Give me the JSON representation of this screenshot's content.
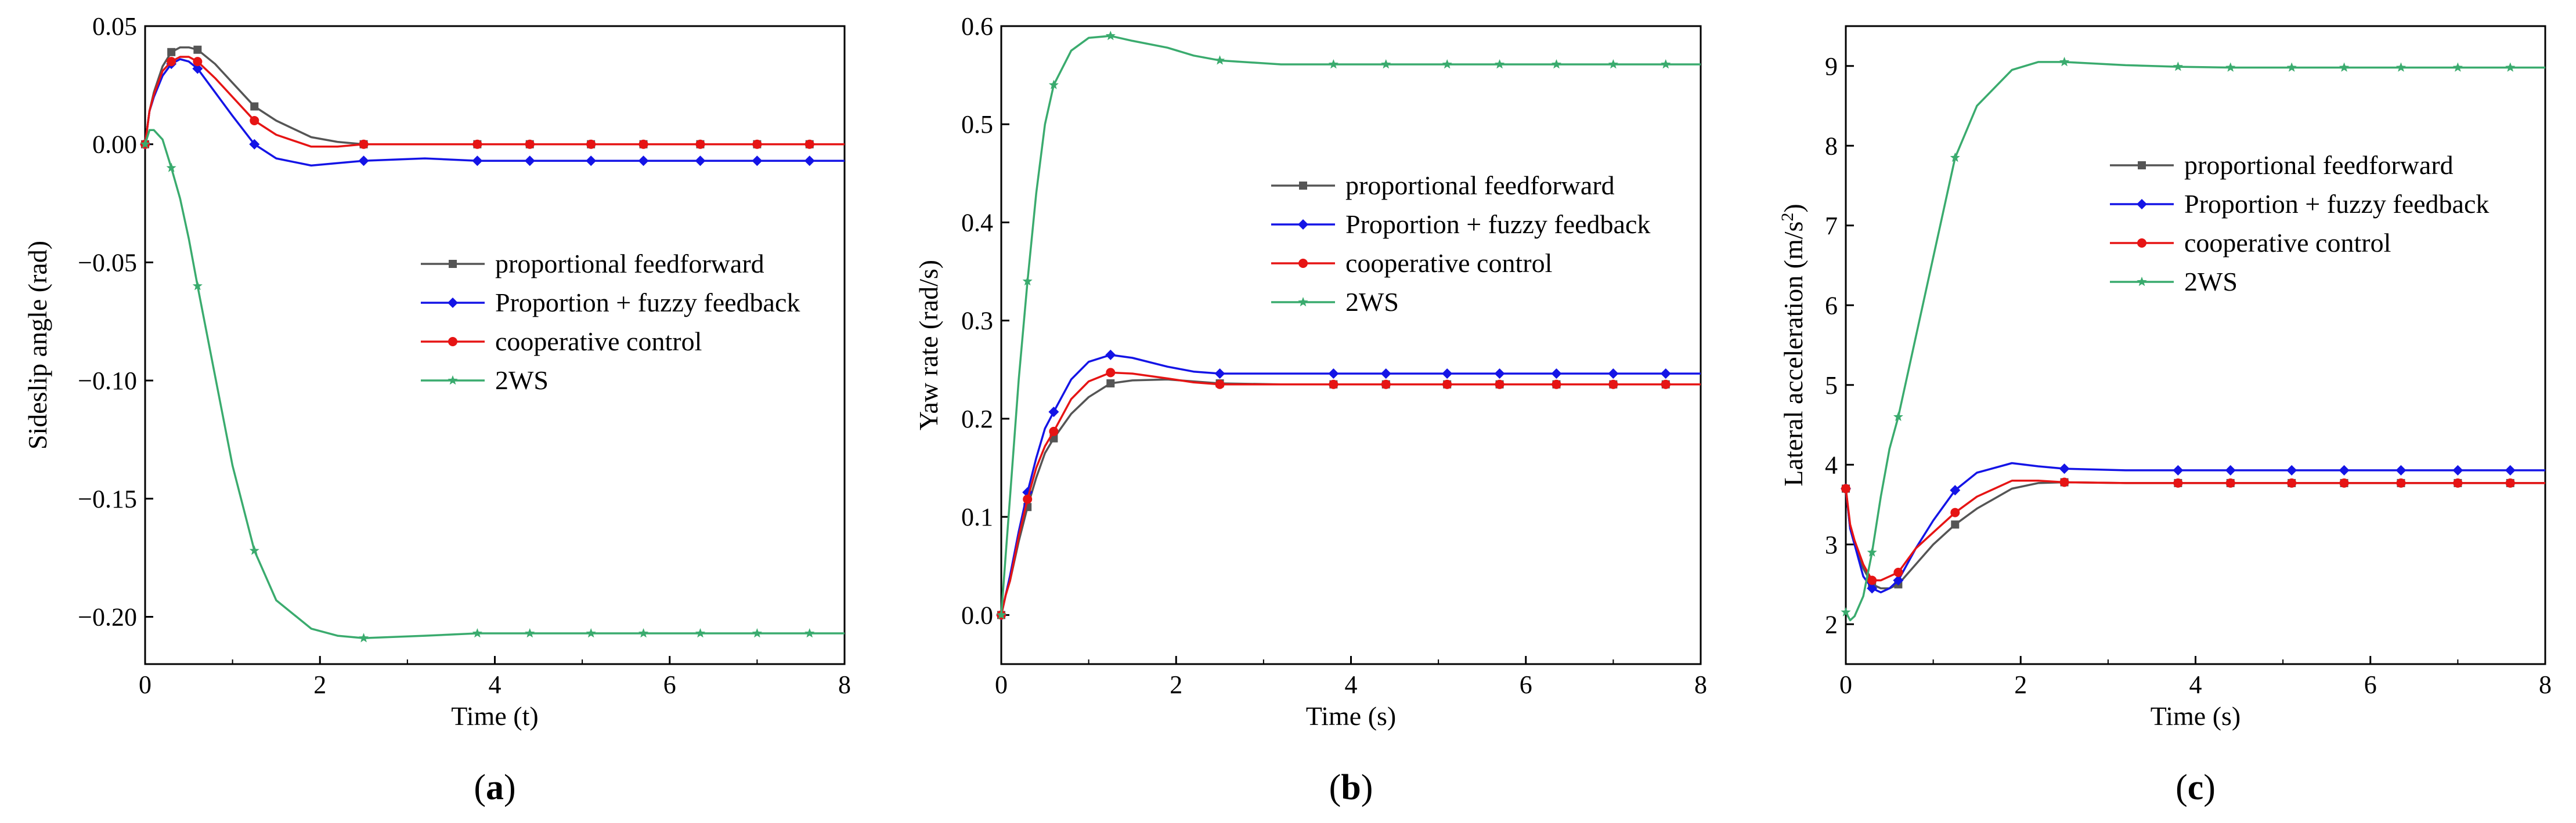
{
  "figure": {
    "legend": [
      {
        "name": "proportional feedforward",
        "color": "#555555",
        "marker": "square"
      },
      {
        "name": "Proportion + fuzzy feedback",
        "color": "#1414e6",
        "marker": "diamond"
      },
      {
        "name": "cooperative control",
        "color": "#e61414",
        "marker": "circle"
      },
      {
        "name": "2WS",
        "color": "#3aab6e",
        "marker": "star"
      }
    ]
  },
  "chart_data": [
    {
      "type": "line",
      "panel_label": "(a)",
      "panel_letter": "a",
      "title": "",
      "xlabel": "Time (t)",
      "ylabel": "Sideslip angle (rad)",
      "xlim": [
        0,
        8
      ],
      "ylim": [
        -0.22,
        0.05
      ],
      "xticks": [
        0,
        2,
        4,
        6,
        8
      ],
      "xtick_labels": [
        "0",
        "2",
        "4",
        "6",
        "8"
      ],
      "yticks": [
        0.05,
        0.0,
        -0.05,
        -0.1,
        -0.15,
        -0.2
      ],
      "ytick_labels": [
        "0.05",
        "0.00",
        "−0.05",
        "−0.10",
        "−0.15",
        "−0.20"
      ],
      "legend_position": "center-right",
      "x": [
        0,
        0.05,
        0.1,
        0.2,
        0.3,
        0.4,
        0.5,
        0.6,
        0.8,
        1.0,
        1.25,
        1.5,
        1.9,
        2.2,
        2.5,
        3.2,
        3.8,
        4.4,
        5.1,
        5.7,
        6.35,
        7.0,
        7.6,
        8.0
      ],
      "series": [
        {
          "name": "proportional feedforward",
          "values": [
            0.0,
            0.014,
            0.022,
            0.033,
            0.039,
            0.041,
            0.041,
            0.04,
            0.034,
            0.026,
            0.016,
            0.01,
            0.003,
            0.001,
            0.0,
            0.0,
            0.0,
            0.0,
            0.0,
            0.0,
            0.0,
            0.0,
            0.0,
            0.0
          ]
        },
        {
          "name": "Proportion + fuzzy feedback",
          "values": [
            0.0,
            0.014,
            0.02,
            0.029,
            0.034,
            0.036,
            0.035,
            0.032,
            0.022,
            0.012,
            0.0,
            -0.006,
            -0.009,
            -0.008,
            -0.007,
            -0.006,
            -0.007,
            -0.007,
            -0.007,
            -0.007,
            -0.007,
            -0.007,
            -0.007,
            -0.007
          ]
        },
        {
          "name": "cooperative control",
          "values": [
            0.0,
            0.014,
            0.021,
            0.031,
            0.035,
            0.037,
            0.037,
            0.035,
            0.028,
            0.02,
            0.01,
            0.004,
            -0.001,
            -0.001,
            0.0,
            0.0,
            0.0,
            0.0,
            0.0,
            0.0,
            0.0,
            0.0,
            0.0,
            0.0
          ]
        },
        {
          "name": "2WS",
          "values": [
            0.0,
            0.006,
            0.006,
            0.002,
            -0.01,
            -0.023,
            -0.04,
            -0.06,
            -0.098,
            -0.136,
            -0.172,
            -0.193,
            -0.205,
            -0.208,
            -0.209,
            -0.208,
            -0.207,
            -0.207,
            -0.207,
            -0.207,
            -0.207,
            -0.207,
            -0.207,
            -0.207
          ]
        }
      ]
    },
    {
      "type": "line",
      "panel_label": "(b)",
      "panel_letter": "b",
      "title": "",
      "xlabel": "Time (s)",
      "ylabel": "Yaw rate (rad/s)",
      "xlim": [
        0,
        8
      ],
      "ylim": [
        -0.05,
        0.6
      ],
      "xticks": [
        0,
        2,
        4,
        6,
        8
      ],
      "xtick_labels": [
        "0",
        "2",
        "4",
        "6",
        "8"
      ],
      "yticks": [
        0.0,
        0.1,
        0.2,
        0.3,
        0.4,
        0.5,
        0.6
      ],
      "ytick_labels": [
        "0.0",
        "0.1",
        "0.2",
        "0.3",
        "0.4",
        "0.5",
        "0.6"
      ],
      "legend_position": "center-right",
      "x": [
        0,
        0.05,
        0.1,
        0.2,
        0.3,
        0.4,
        0.5,
        0.6,
        0.8,
        1.0,
        1.25,
        1.5,
        1.9,
        2.2,
        2.5,
        3.2,
        3.8,
        4.4,
        5.1,
        5.7,
        6.35,
        7.0,
        7.6,
        8.0
      ],
      "series": [
        {
          "name": "proportional feedforward",
          "values": [
            0.0,
            0.02,
            0.035,
            0.075,
            0.11,
            0.14,
            0.165,
            0.18,
            0.205,
            0.222,
            0.236,
            0.239,
            0.24,
            0.238,
            0.236,
            0.235,
            0.235,
            0.235,
            0.235,
            0.235,
            0.235,
            0.235,
            0.235,
            0.235
          ]
        },
        {
          "name": "Proportion + fuzzy feedback",
          "values": [
            0.0,
            0.02,
            0.04,
            0.085,
            0.125,
            0.16,
            0.19,
            0.207,
            0.24,
            0.258,
            0.265,
            0.262,
            0.253,
            0.248,
            0.246,
            0.246,
            0.246,
            0.246,
            0.246,
            0.246,
            0.246,
            0.246,
            0.246,
            0.246
          ]
        },
        {
          "name": "cooperative control",
          "values": [
            0.0,
            0.02,
            0.035,
            0.08,
            0.118,
            0.15,
            0.172,
            0.187,
            0.22,
            0.238,
            0.247,
            0.246,
            0.241,
            0.237,
            0.235,
            0.235,
            0.235,
            0.235,
            0.235,
            0.235,
            0.235,
            0.235,
            0.235,
            0.235
          ]
        },
        {
          "name": "2WS",
          "values": [
            0.0,
            0.06,
            0.12,
            0.24,
            0.34,
            0.43,
            0.5,
            0.54,
            0.575,
            0.588,
            0.59,
            0.585,
            0.578,
            0.57,
            0.565,
            0.561,
            0.561,
            0.561,
            0.561,
            0.561,
            0.561,
            0.561,
            0.561,
            0.561
          ]
        }
      ]
    },
    {
      "type": "line",
      "panel_label": "(c)",
      "panel_letter": "c",
      "title": "",
      "xlabel": "Time (s)",
      "ylabel": "Lateral acceleration (m/s²)",
      "ylabel_base": "Lateral acceleration (m/s",
      "ylabel_sup": "2",
      "ylabel_close": ")",
      "xlim": [
        0,
        8
      ],
      "ylim": [
        1.5,
        9.5
      ],
      "xticks": [
        0,
        2,
        4,
        6,
        8
      ],
      "xtick_labels": [
        "0",
        "2",
        "4",
        "6",
        "8"
      ],
      "yticks": [
        2,
        3,
        4,
        5,
        6,
        7,
        8,
        9
      ],
      "ytick_labels": [
        "2",
        "3",
        "4",
        "5",
        "6",
        "7",
        "8",
        "9"
      ],
      "legend_position": "top-right",
      "x": [
        0,
        0.05,
        0.1,
        0.2,
        0.3,
        0.4,
        0.5,
        0.6,
        0.8,
        1.0,
        1.25,
        1.5,
        1.9,
        2.2,
        2.5,
        3.2,
        3.8,
        4.4,
        5.1,
        5.7,
        6.35,
        7.0,
        7.6,
        8.0
      ],
      "series": [
        {
          "name": "proportional feedforward",
          "values": [
            3.7,
            3.2,
            3.0,
            2.7,
            2.5,
            2.45,
            2.45,
            2.5,
            2.75,
            3.0,
            3.25,
            3.45,
            3.7,
            3.77,
            3.78,
            3.77,
            3.77,
            3.77,
            3.77,
            3.77,
            3.77,
            3.77,
            3.77,
            3.77
          ]
        },
        {
          "name": "Proportion + fuzzy feedback",
          "values": [
            3.7,
            3.2,
            3.0,
            2.6,
            2.45,
            2.4,
            2.45,
            2.55,
            2.95,
            3.3,
            3.68,
            3.9,
            4.02,
            3.98,
            3.95,
            3.93,
            3.93,
            3.93,
            3.93,
            3.93,
            3.93,
            3.93,
            3.93,
            3.93
          ]
        },
        {
          "name": "cooperative control",
          "values": [
            3.7,
            3.25,
            3.05,
            2.75,
            2.55,
            2.55,
            2.6,
            2.65,
            2.95,
            3.15,
            3.4,
            3.6,
            3.8,
            3.8,
            3.78,
            3.77,
            3.77,
            3.77,
            3.77,
            3.77,
            3.77,
            3.77,
            3.77,
            3.77
          ]
        },
        {
          "name": "2WS",
          "values": [
            2.15,
            2.05,
            2.1,
            2.35,
            2.9,
            3.6,
            4.2,
            4.6,
            5.6,
            6.6,
            7.85,
            8.5,
            8.95,
            9.05,
            9.05,
            9.01,
            8.99,
            8.98,
            8.98,
            8.98,
            8.98,
            8.98,
            8.98,
            8.98
          ]
        }
      ]
    }
  ]
}
